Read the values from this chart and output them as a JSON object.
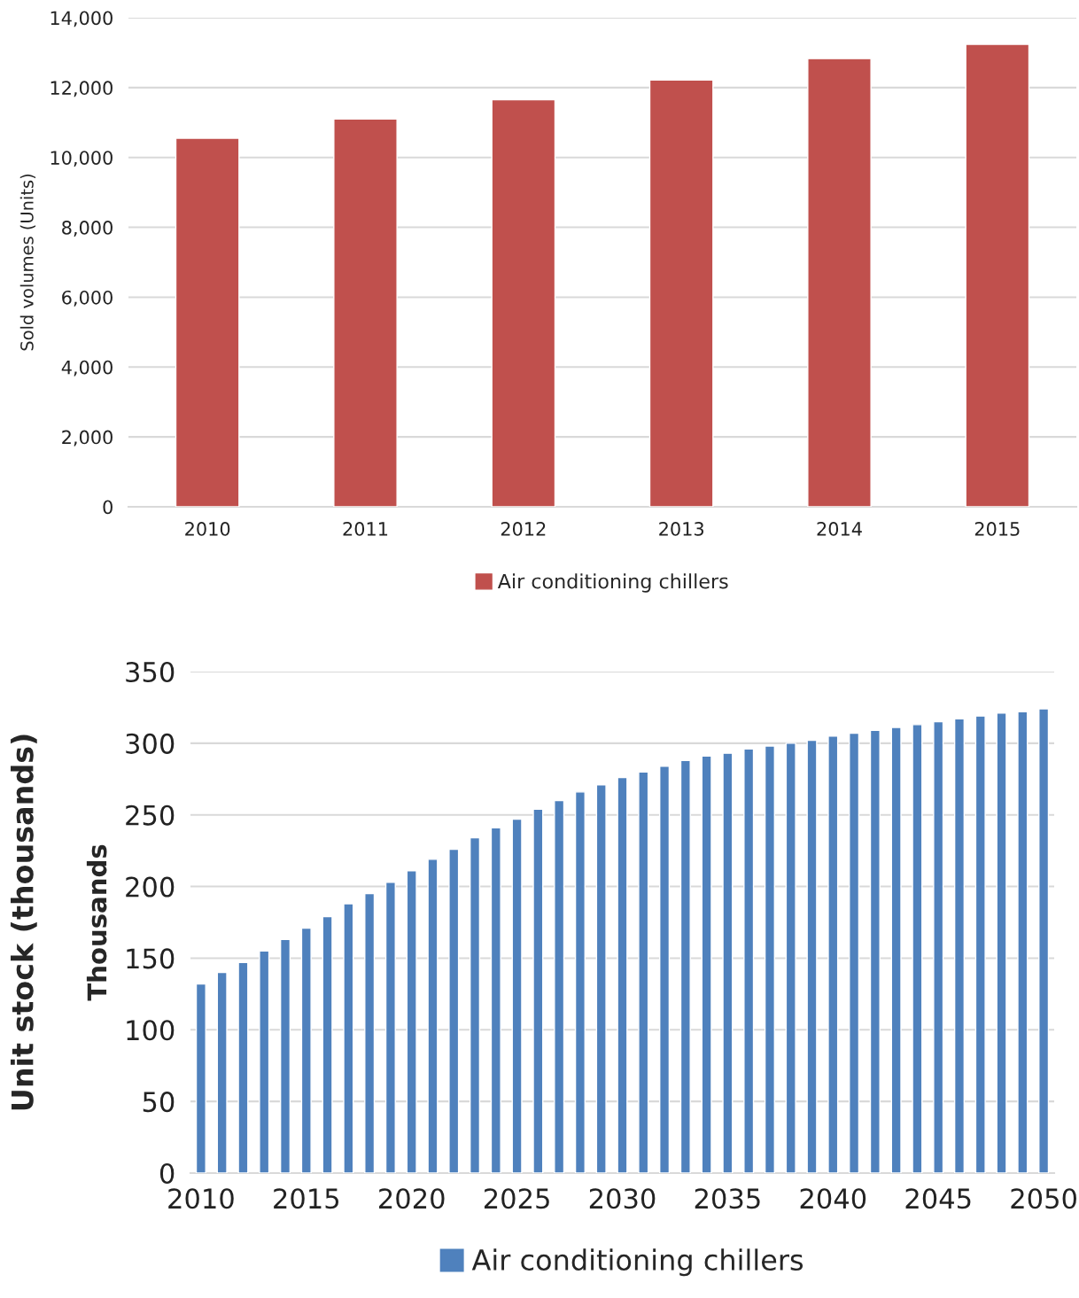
{
  "chart_data": [
    {
      "type": "bar",
      "ylabel": "Sold volumes (Units)",
      "categories": [
        "2010",
        "2011",
        "2012",
        "2013",
        "2014",
        "2015"
      ],
      "series": [
        {
          "name": "Air conditioning chillers",
          "color": "#c0504d",
          "values": [
            10550,
            11100,
            11650,
            12220,
            12830,
            13240
          ]
        }
      ],
      "ylim": [
        0,
        14000
      ],
      "yticks": [
        {
          "value": 0,
          "label": "0"
        },
        {
          "value": 2000,
          "label": "2,000"
        },
        {
          "value": 4000,
          "label": "4,000"
        },
        {
          "value": 6000,
          "label": "6,000"
        },
        {
          "value": 8000,
          "label": "8,000"
        },
        {
          "value": 10000,
          "label": "10,000"
        },
        {
          "value": 12000,
          "label": "12,000"
        },
        {
          "value": 14000,
          "label": "14,000"
        }
      ],
      "grid": "y",
      "legend": "bottom"
    },
    {
      "type": "bar",
      "ylabel": "Thousands",
      "annotations": [
        "Unit stock (thousands)"
      ],
      "categories": [
        "2010",
        null,
        null,
        null,
        null,
        "2015",
        null,
        null,
        null,
        null,
        "2020",
        null,
        null,
        null,
        null,
        "2025",
        null,
        null,
        null,
        null,
        "2030",
        null,
        null,
        null,
        null,
        "2035",
        null,
        null,
        null,
        null,
        "2040",
        null,
        null,
        null,
        null,
        "2045",
        null,
        null,
        null,
        null,
        "2050"
      ],
      "series": [
        {
          "name": "Air conditioning chillers",
          "color": "#4f81bd",
          "values": [
            132,
            140,
            147,
            155,
            163,
            171,
            179,
            188,
            195,
            203,
            211,
            219,
            226,
            234,
            241,
            247,
            254,
            260,
            266,
            271,
            276,
            280,
            284,
            288,
            291,
            293,
            296,
            298,
            300,
            302,
            305,
            307,
            309,
            311,
            313,
            315,
            317,
            319,
            321,
            322,
            324
          ]
        }
      ],
      "ylim": [
        0,
        350
      ],
      "yticks": [
        0,
        50,
        100,
        150,
        200,
        250,
        300,
        350
      ],
      "grid": "y",
      "legend": "bottom"
    }
  ]
}
